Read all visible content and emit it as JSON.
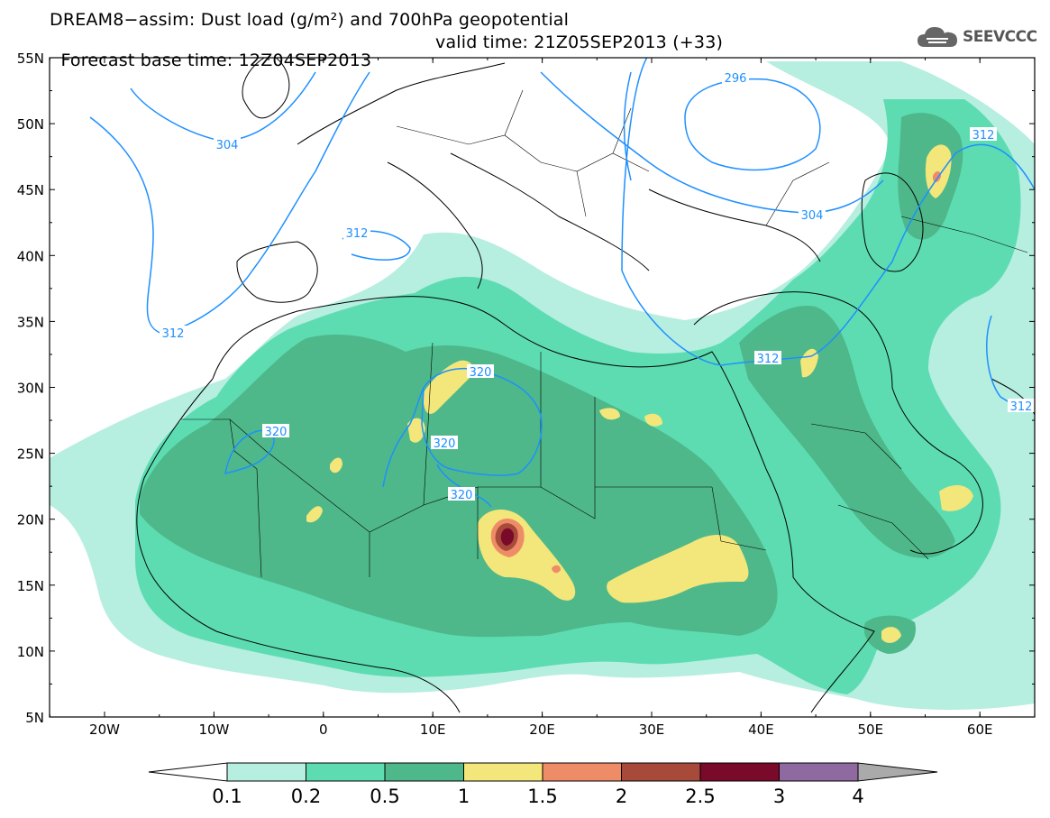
{
  "title": {
    "line1": "DREAM8−assim: Dust load (g/m²) and 700hPa geopotential",
    "line2_base": "Forecast base time: 12Z04SEP2013",
    "line2_valid": "valid time: 21Z05SEP2013 (+33)"
  },
  "logo": {
    "text": "SEEVCCC",
    "icon": "cloud-icon"
  },
  "map": {
    "lat_labels": [
      "55N",
      "50N",
      "45N",
      "40N",
      "35N",
      "30N",
      "25N",
      "20N",
      "15N",
      "10N",
      "5N"
    ],
    "lon_labels": [
      "20W",
      "10W",
      "0",
      "10E",
      "20E",
      "30E",
      "40E",
      "50E",
      "60E"
    ],
    "contour_labels": [
      "296",
      "304",
      "304",
      "304",
      "312",
      "312",
      "312",
      "312",
      "312",
      "320",
      "320",
      "320",
      "320"
    ],
    "colors": {
      "coast": "#000000",
      "contour": "#1e90ff",
      "c01": "#b6eee0",
      "c02": "#5ddcb2",
      "c05": "#4eb88a",
      "c1": "#f3e67a",
      "c15": "#ee8c68",
      "c2": "#a84a3a",
      "c25": "#7a0a2a",
      "c3": "#8e6aa0",
      "c4": "#aaaaaa"
    }
  },
  "colorbar": {
    "labels": [
      "0.1",
      "0.2",
      "0.5",
      "1",
      "1.5",
      "2",
      "2.5",
      "3",
      "4"
    ],
    "colors": [
      "#b6eee0",
      "#5ddcb2",
      "#4eb88a",
      "#f3e67a",
      "#ee8c68",
      "#a84a3a",
      "#7a0a2a",
      "#8e6aa0"
    ],
    "under_color": "#ffffff",
    "over_color": "#aaaaaa"
  }
}
